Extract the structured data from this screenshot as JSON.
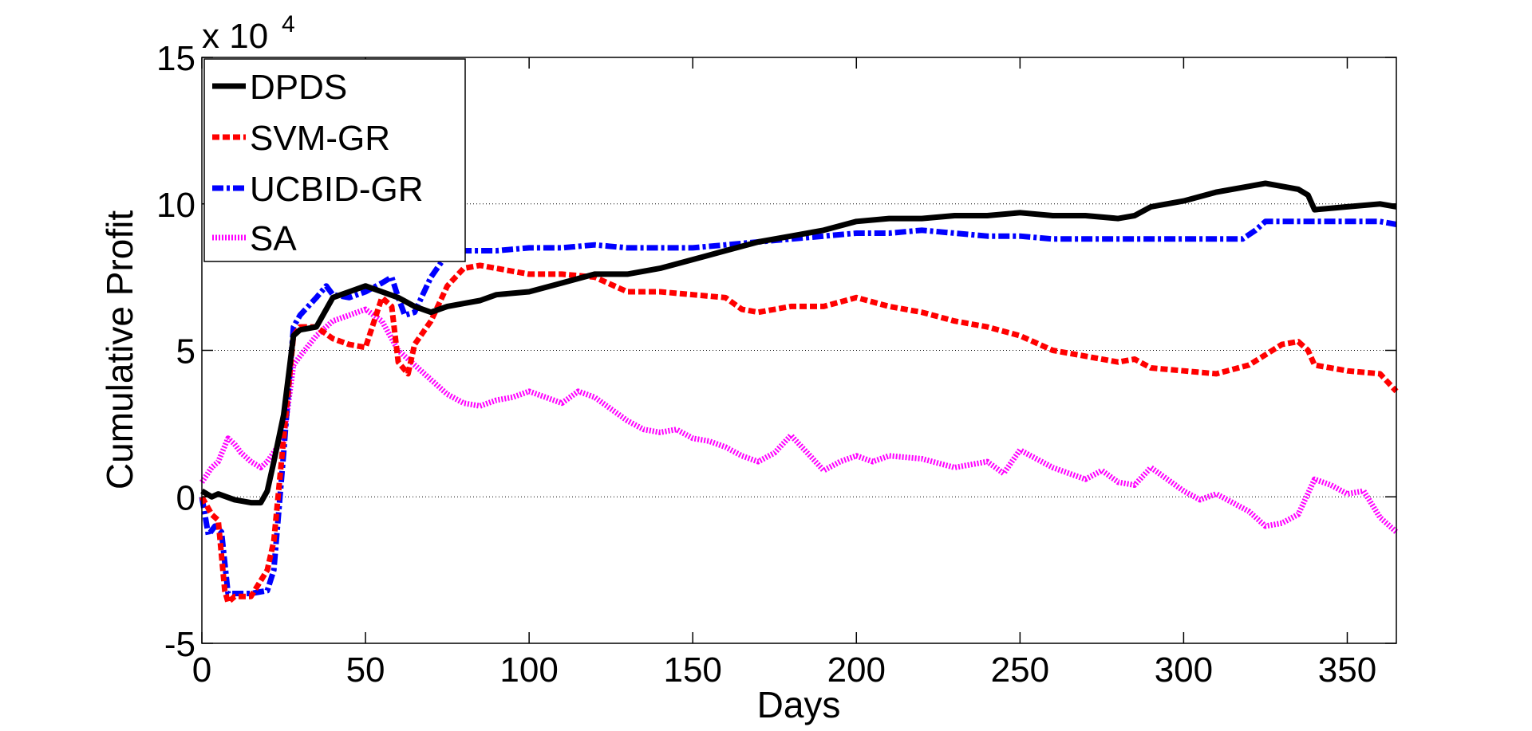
{
  "chart_data": {
    "type": "line",
    "title": "",
    "xlabel": "Days",
    "ylabel": "Cumulative Profit",
    "xlim": [
      0,
      365
    ],
    "ylim": [
      -5,
      15
    ],
    "y_scale_exponent_label": "x 10",
    "y_scale_exponent_power": "4",
    "grid": "horizontal dotted at y ticks",
    "legend_location": "top-left",
    "xticks": [
      0,
      50,
      100,
      150,
      200,
      250,
      300,
      350
    ],
    "yticks": [
      -5,
      0,
      5,
      10,
      15
    ],
    "xtick_labels": [
      "0",
      "50",
      "100",
      "150",
      "200",
      "250",
      "300",
      "350"
    ],
    "ytick_labels": [
      "-5",
      "0",
      "5",
      "10",
      "15"
    ],
    "series": [
      {
        "name": "DPDS",
        "color": "#000000",
        "style": "solid",
        "x": [
          0,
          3,
          5,
          10,
          15,
          18,
          20,
          22,
          25,
          28,
          30,
          35,
          40,
          45,
          50,
          55,
          60,
          65,
          70,
          75,
          80,
          85,
          90,
          100,
          110,
          120,
          130,
          140,
          150,
          160,
          170,
          180,
          190,
          200,
          210,
          220,
          230,
          240,
          250,
          260,
          270,
          280,
          285,
          290,
          300,
          310,
          320,
          325,
          330,
          335,
          338,
          340,
          350,
          360,
          365
        ],
        "y": [
          0.2,
          0,
          0.1,
          -0.1,
          -0.2,
          -0.2,
          0.2,
          1.2,
          2.8,
          5.5,
          5.7,
          5.8,
          6.8,
          7.0,
          7.2,
          7.0,
          6.8,
          6.5,
          6.3,
          6.5,
          6.6,
          6.7,
          6.9,
          7.0,
          7.3,
          7.6,
          7.6,
          7.8,
          8.1,
          8.4,
          8.7,
          8.9,
          9.1,
          9.4,
          9.5,
          9.5,
          9.6,
          9.6,
          9.7,
          9.6,
          9.6,
          9.5,
          9.6,
          9.9,
          10.1,
          10.4,
          10.6,
          10.7,
          10.6,
          10.5,
          10.3,
          9.8,
          9.9,
          10.0,
          9.9
        ]
      },
      {
        "name": "SVM-GR",
        "color": "#ff0000",
        "style": "dashed",
        "x": [
          0,
          3,
          5,
          7,
          8,
          10,
          15,
          20,
          22,
          25,
          28,
          30,
          35,
          40,
          45,
          50,
          55,
          58,
          60,
          63,
          65,
          70,
          75,
          80,
          85,
          90,
          95,
          100,
          110,
          120,
          130,
          140,
          150,
          160,
          165,
          170,
          180,
          190,
          200,
          210,
          220,
          230,
          240,
          250,
          260,
          270,
          280,
          285,
          290,
          300,
          310,
          320,
          330,
          335,
          338,
          340,
          350,
          360,
          365
        ],
        "y": [
          0,
          -0.6,
          -0.8,
          -3.2,
          -3.6,
          -3.4,
          -3.4,
          -2.5,
          -1.5,
          2.0,
          5.5,
          5.8,
          5.8,
          5.4,
          5.2,
          5.1,
          6.8,
          6.5,
          4.6,
          4.2,
          5.2,
          6.0,
          7.2,
          7.8,
          7.9,
          7.8,
          7.7,
          7.6,
          7.6,
          7.5,
          7.0,
          7.0,
          6.9,
          6.8,
          6.4,
          6.3,
          6.5,
          6.5,
          6.8,
          6.5,
          6.3,
          6.0,
          5.8,
          5.5,
          5.0,
          4.8,
          4.6,
          4.7,
          4.4,
          4.3,
          4.2,
          4.5,
          5.2,
          5.3,
          5.0,
          4.5,
          4.3,
          4.2,
          3.6
        ]
      },
      {
        "name": "UCBID-GR",
        "color": "#0000ff",
        "style": "dashdot",
        "x": [
          0,
          2,
          4,
          6,
          8,
          10,
          15,
          20,
          22,
          25,
          28,
          30,
          35,
          38,
          40,
          45,
          50,
          55,
          58,
          60,
          62,
          65,
          70,
          75,
          80,
          90,
          100,
          110,
          120,
          130,
          140,
          150,
          160,
          170,
          180,
          190,
          200,
          210,
          220,
          230,
          240,
          250,
          260,
          270,
          280,
          290,
          300,
          310,
          318,
          322,
          325,
          330,
          340,
          350,
          360,
          365
        ],
        "y": [
          0,
          -1.3,
          -1.0,
          -1.2,
          -3.3,
          -3.3,
          -3.3,
          -3.2,
          -2.5,
          1.5,
          5.8,
          6.2,
          6.8,
          7.2,
          6.9,
          6.8,
          7.0,
          7.3,
          7.5,
          6.8,
          6.2,
          6.3,
          7.5,
          8.3,
          8.4,
          8.4,
          8.5,
          8.5,
          8.6,
          8.5,
          8.5,
          8.5,
          8.6,
          8.7,
          8.8,
          8.9,
          9.0,
          9.0,
          9.1,
          9.0,
          8.9,
          8.9,
          8.8,
          8.8,
          8.8,
          8.8,
          8.8,
          8.8,
          8.8,
          9.1,
          9.4,
          9.4,
          9.4,
          9.4,
          9.4,
          9.3
        ]
      },
      {
        "name": "SA",
        "color": "#ff00ff",
        "style": "dotted",
        "x": [
          0,
          3,
          5,
          8,
          10,
          12,
          15,
          18,
          20,
          25,
          28,
          30,
          35,
          40,
          45,
          50,
          55,
          60,
          65,
          70,
          75,
          80,
          85,
          90,
          95,
          100,
          105,
          110,
          115,
          120,
          125,
          130,
          135,
          140,
          145,
          150,
          155,
          160,
          165,
          170,
          175,
          180,
          185,
          190,
          195,
          200,
          205,
          210,
          220,
          230,
          240,
          245,
          250,
          255,
          260,
          265,
          270,
          275,
          280,
          285,
          290,
          295,
          300,
          305,
          310,
          315,
          320,
          325,
          330,
          335,
          340,
          345,
          350,
          355,
          360,
          365
        ],
        "y": [
          0.5,
          1.0,
          1.2,
          2.0,
          1.8,
          1.5,
          1.2,
          1.0,
          1.2,
          2.0,
          4.5,
          4.8,
          5.5,
          6.0,
          6.2,
          6.4,
          6.0,
          5.0,
          4.5,
          4.0,
          3.5,
          3.2,
          3.1,
          3.3,
          3.4,
          3.6,
          3.4,
          3.2,
          3.6,
          3.4,
          3.0,
          2.6,
          2.3,
          2.2,
          2.3,
          2.0,
          1.9,
          1.7,
          1.4,
          1.2,
          1.5,
          2.1,
          1.5,
          0.9,
          1.2,
          1.4,
          1.2,
          1.4,
          1.3,
          1.0,
          1.2,
          0.8,
          1.6,
          1.3,
          1.0,
          0.8,
          0.6,
          0.9,
          0.5,
          0.4,
          1.0,
          0.6,
          0.2,
          -0.1,
          0.1,
          -0.2,
          -0.5,
          -1.0,
          -0.9,
          -0.6,
          0.6,
          0.4,
          0.1,
          0.2,
          -0.7,
          -1.2
        ]
      }
    ]
  }
}
